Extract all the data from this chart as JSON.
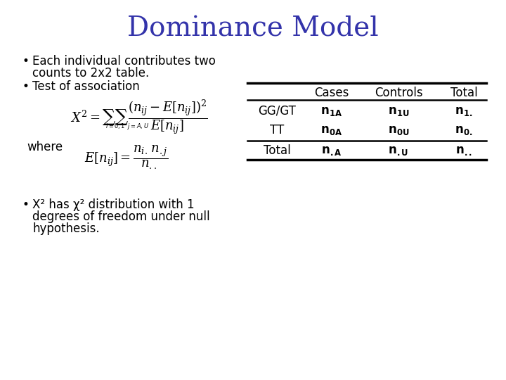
{
  "title": "Dominance Model",
  "title_color": "#3333aa",
  "title_fontsize": 28,
  "bullet1_line1": "Each individual contributes two",
  "bullet1_line2": "counts to 2x2 table.",
  "bullet2": "Test of association",
  "bullet3_line1": "X² has χ² distribution with 1",
  "bullet3_line2": "degrees of freedom under null",
  "bullet3_line3": "hypothesis.",
  "where_text": "where",
  "table_headers": [
    "",
    "Cases",
    "Controls",
    "Total"
  ],
  "bg_color": "#ffffff",
  "text_color": "#000000",
  "fontsize_body": 12,
  "fontsize_title": 28
}
